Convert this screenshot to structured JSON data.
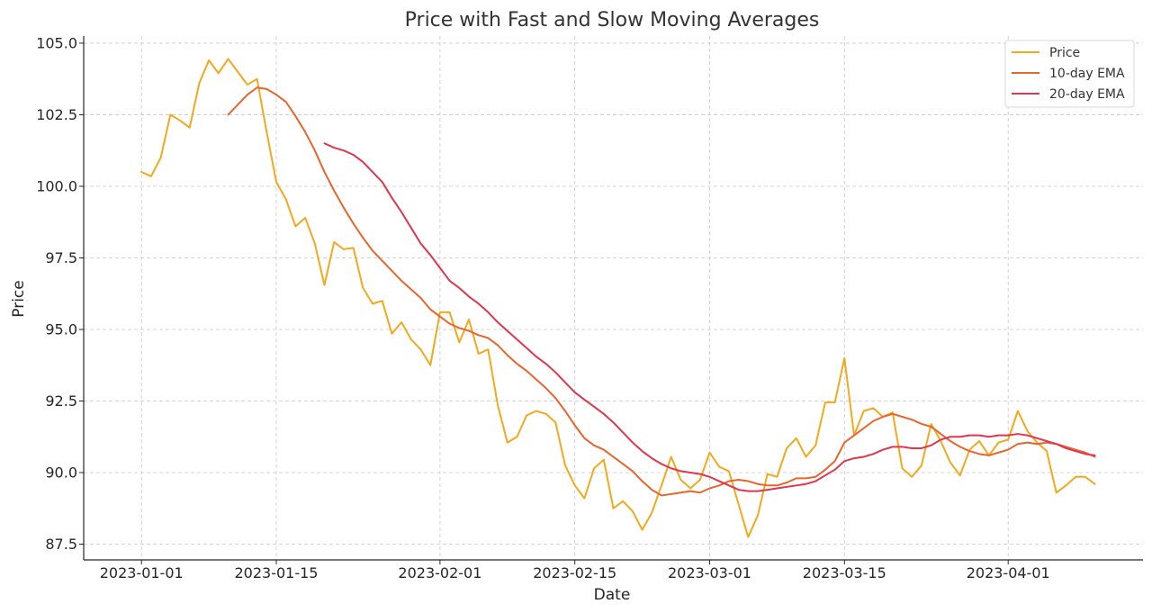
{
  "chart_data": {
    "type": "line",
    "title": "Price with Fast and Slow Moving Averages",
    "xlabel": "Date",
    "ylabel": "Price",
    "x_type": "date",
    "x_start": "2023-01-01",
    "x": [
      "2023-01-01",
      "2023-01-02",
      "2023-01-03",
      "2023-01-04",
      "2023-01-05",
      "2023-01-06",
      "2023-01-07",
      "2023-01-08",
      "2023-01-09",
      "2023-01-10",
      "2023-01-11",
      "2023-01-12",
      "2023-01-13",
      "2023-01-14",
      "2023-01-15",
      "2023-01-16",
      "2023-01-17",
      "2023-01-18",
      "2023-01-19",
      "2023-01-20",
      "2023-01-21",
      "2023-01-22",
      "2023-01-23",
      "2023-01-24",
      "2023-01-25",
      "2023-01-26",
      "2023-01-27",
      "2023-01-28",
      "2023-01-29",
      "2023-01-30",
      "2023-01-31",
      "2023-02-01",
      "2023-02-02",
      "2023-02-03",
      "2023-02-04",
      "2023-02-05",
      "2023-02-06",
      "2023-02-07",
      "2023-02-08",
      "2023-02-09",
      "2023-02-10",
      "2023-02-11",
      "2023-02-12",
      "2023-02-13",
      "2023-02-14",
      "2023-02-15",
      "2023-02-16",
      "2023-02-17",
      "2023-02-18",
      "2023-02-19",
      "2023-02-20",
      "2023-02-21",
      "2023-02-22",
      "2023-02-23",
      "2023-02-24",
      "2023-02-25",
      "2023-02-26",
      "2023-02-27",
      "2023-02-28",
      "2023-03-01",
      "2023-03-02",
      "2023-03-03",
      "2023-03-04",
      "2023-03-05",
      "2023-03-06",
      "2023-03-07",
      "2023-03-08",
      "2023-03-09",
      "2023-03-10",
      "2023-03-11",
      "2023-03-12",
      "2023-03-13",
      "2023-03-14",
      "2023-03-15",
      "2023-03-16",
      "2023-03-17",
      "2023-03-18",
      "2023-03-19",
      "2023-03-20",
      "2023-03-21",
      "2023-03-22",
      "2023-03-23",
      "2023-03-24",
      "2023-03-25",
      "2023-03-26",
      "2023-03-27",
      "2023-03-28",
      "2023-03-29",
      "2023-03-30",
      "2023-03-31",
      "2023-04-01",
      "2023-04-02",
      "2023-04-03",
      "2023-04-04",
      "2023-04-05",
      "2023-04-06",
      "2023-04-07",
      "2023-04-08",
      "2023-04-09",
      "2023-04-10"
    ],
    "xlim": [
      "2022-12-26",
      "2023-04-15"
    ],
    "xticks": [
      "2023-01-01",
      "2023-01-15",
      "2023-02-01",
      "2023-02-15",
      "2023-03-01",
      "2023-03-15",
      "2023-04-01"
    ],
    "xtick_labels": [
      "2023-01-01",
      "2023-01-15",
      "2023-02-01",
      "2023-02-15",
      "2023-03-01",
      "2023-03-15",
      "2023-04-01"
    ],
    "ylim": [
      86.95,
      105.25
    ],
    "yticks": [
      87.5,
      90.0,
      92.5,
      95.0,
      97.5,
      100.0,
      102.5,
      105.0
    ],
    "ytick_labels": [
      "87.5",
      "90.0",
      "92.5",
      "95.0",
      "97.5",
      "100.0",
      "102.5",
      "105.0"
    ],
    "grid": true,
    "legend_position": "top-right",
    "series": [
      {
        "name": "Price",
        "color": "#f2a91d",
        "values": [
          100.5,
          100.35,
          101.0,
          102.5,
          102.3,
          102.05,
          103.6,
          104.4,
          103.95,
          104.45,
          104.0,
          103.55,
          103.75,
          101.9,
          100.15,
          99.55,
          98.6,
          98.9,
          98.0,
          96.55,
          98.05,
          97.8,
          97.85,
          96.45,
          95.9,
          96.0,
          94.85,
          95.25,
          94.65,
          94.3,
          93.75,
          95.6,
          95.6,
          94.55,
          95.35,
          94.15,
          94.3,
          92.35,
          91.05,
          91.25,
          92.0,
          92.15,
          92.05,
          91.75,
          90.25,
          89.55,
          89.1,
          90.15,
          90.45,
          88.75,
          89.0,
          88.65,
          88.0,
          88.6,
          89.55,
          90.55,
          89.75,
          89.45,
          89.75,
          90.7,
          90.2,
          90.05,
          88.9,
          87.75,
          88.5,
          89.95,
          89.85,
          90.85,
          91.2,
          90.55,
          90.95,
          92.45,
          92.45,
          94.0,
          91.3,
          92.15,
          92.25,
          91.95,
          92.1,
          90.15,
          89.85,
          90.25,
          91.7,
          91.1,
          90.35,
          89.9,
          90.8,
          91.1,
          90.6,
          91.05,
          91.15,
          92.15,
          91.45,
          91.05,
          90.75,
          89.3,
          89.55,
          89.85,
          89.85,
          89.6
        ]
      },
      {
        "name": "10-day EMA",
        "color": "#e8652c",
        "values": [
          null,
          null,
          null,
          null,
          null,
          null,
          null,
          null,
          null,
          102.5,
          102.85,
          103.2,
          103.45,
          103.4,
          103.2,
          102.95,
          102.45,
          101.9,
          101.25,
          100.5,
          99.85,
          99.25,
          98.7,
          98.2,
          97.75,
          97.4,
          97.05,
          96.7,
          96.4,
          96.1,
          95.7,
          95.45,
          95.2,
          95.05,
          94.95,
          94.8,
          94.7,
          94.45,
          94.1,
          93.8,
          93.55,
          93.25,
          92.95,
          92.6,
          92.15,
          91.65,
          91.2,
          90.95,
          90.8,
          90.55,
          90.3,
          90.05,
          89.7,
          89.4,
          89.2,
          89.25,
          89.3,
          89.35,
          89.3,
          89.45,
          89.55,
          89.7,
          89.75,
          89.7,
          89.6,
          89.55,
          89.55,
          89.65,
          89.8,
          89.8,
          89.85,
          90.1,
          90.4,
          91.05,
          91.3,
          91.55,
          91.8,
          91.95,
          92.05,
          91.95,
          91.85,
          91.7,
          91.6,
          91.35,
          91.1,
          90.9,
          90.75,
          90.65,
          90.6,
          90.7,
          90.8,
          91.0,
          91.05,
          91.0,
          91.05,
          91.0,
          90.9,
          90.8,
          90.7,
          90.55
        ]
      },
      {
        "name": "20-day EMA",
        "color": "#e0364f",
        "values": [
          null,
          null,
          null,
          null,
          null,
          null,
          null,
          null,
          null,
          null,
          null,
          null,
          null,
          null,
          null,
          null,
          null,
          null,
          null,
          101.5,
          101.35,
          101.25,
          101.1,
          100.85,
          100.5,
          100.15,
          99.6,
          99.1,
          98.55,
          98.0,
          97.6,
          97.15,
          96.7,
          96.45,
          96.15,
          95.9,
          95.6,
          95.25,
          94.95,
          94.65,
          94.35,
          94.05,
          93.8,
          93.5,
          93.15,
          92.8,
          92.55,
          92.3,
          92.05,
          91.75,
          91.4,
          91.05,
          90.75,
          90.5,
          90.3,
          90.15,
          90.05,
          90.0,
          89.95,
          89.85,
          89.7,
          89.55,
          89.4,
          89.35,
          89.35,
          89.4,
          89.45,
          89.5,
          89.55,
          89.6,
          89.7,
          89.9,
          90.1,
          90.4,
          90.5,
          90.55,
          90.65,
          90.8,
          90.9,
          90.9,
          90.85,
          90.85,
          90.95,
          91.15,
          91.25,
          91.25,
          91.3,
          91.3,
          91.25,
          91.3,
          91.3,
          91.35,
          91.3,
          91.2,
          91.1,
          91.0,
          90.85,
          90.75,
          90.65,
          90.6
        ]
      }
    ]
  }
}
